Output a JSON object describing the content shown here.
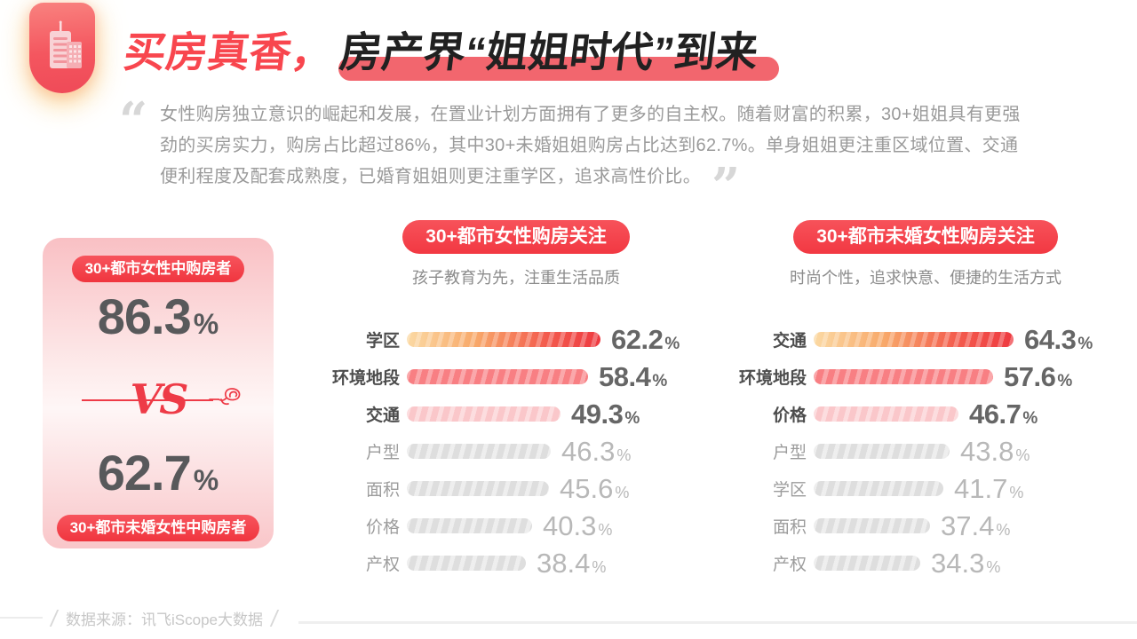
{
  "page": {
    "title_red": "买房真香，",
    "title_black": "房产界“姐姐时代”到来",
    "quote": "女性购房独立意识的崛起和发展，在置业计划方面拥有了更多的自主权。随着财富的积累，30+姐姐具有更强劲的买房实力，购房占比超过86%，其中30+未婚姐姐购房占比达到62.7%。单身姐姐更注重区域位置、交通便利程度及配套成熟度，已婚育姐姐则更注重学区，追求高性价比。",
    "open_quote": "“",
    "close_quote": "”",
    "source": "数据来源：讯飞iScope大数据"
  },
  "vs_card": {
    "top_badge": "30+都市女性中购房者",
    "top_value": "86.3",
    "vs_label": "VS",
    "bottom_value": "62.7",
    "bottom_badge": "30+都市未婚女性中购房者",
    "percent_sign": "%"
  },
  "chart_data": [
    {
      "type": "bar",
      "title": "30+都市女性购房关注",
      "subtitle": "孩子教育为先，注重生活品质",
      "categories": [
        "学区",
        "环境地段",
        "交通",
        "户型",
        "面积",
        "价格",
        "产权"
      ],
      "values": [
        62.2,
        58.4,
        49.3,
        46.3,
        45.6,
        40.3,
        38.4
      ],
      "unit": "%",
      "highlight_count": 3,
      "xlim": [
        0,
        100
      ],
      "orientation": "horizontal"
    },
    {
      "type": "bar",
      "title": "30+都市未婚女性购房关注",
      "subtitle": "时尚个性，追求快意、便捷的生活方式",
      "categories": [
        "交通",
        "环境地段",
        "价格",
        "户型",
        "学区",
        "面积",
        "产权"
      ],
      "values": [
        64.3,
        57.6,
        46.7,
        43.8,
        41.7,
        37.4,
        34.3
      ],
      "unit": "%",
      "highlight_count": 3,
      "xlim": [
        0,
        100
      ],
      "orientation": "horizontal"
    }
  ],
  "colors": {
    "accent": "#F8464E",
    "accent2": "#EE3B47",
    "highlight": "#F2666E",
    "badge-red": "#F23842",
    "card-pink": "#F9C0C4",
    "bar-salmon": "#F87F83",
    "bar-pink": "#FAC7CA",
    "bar-gray": "#DEDEDE",
    "num-dark": "#58595B",
    "text-gray": "#9A9A9A"
  }
}
